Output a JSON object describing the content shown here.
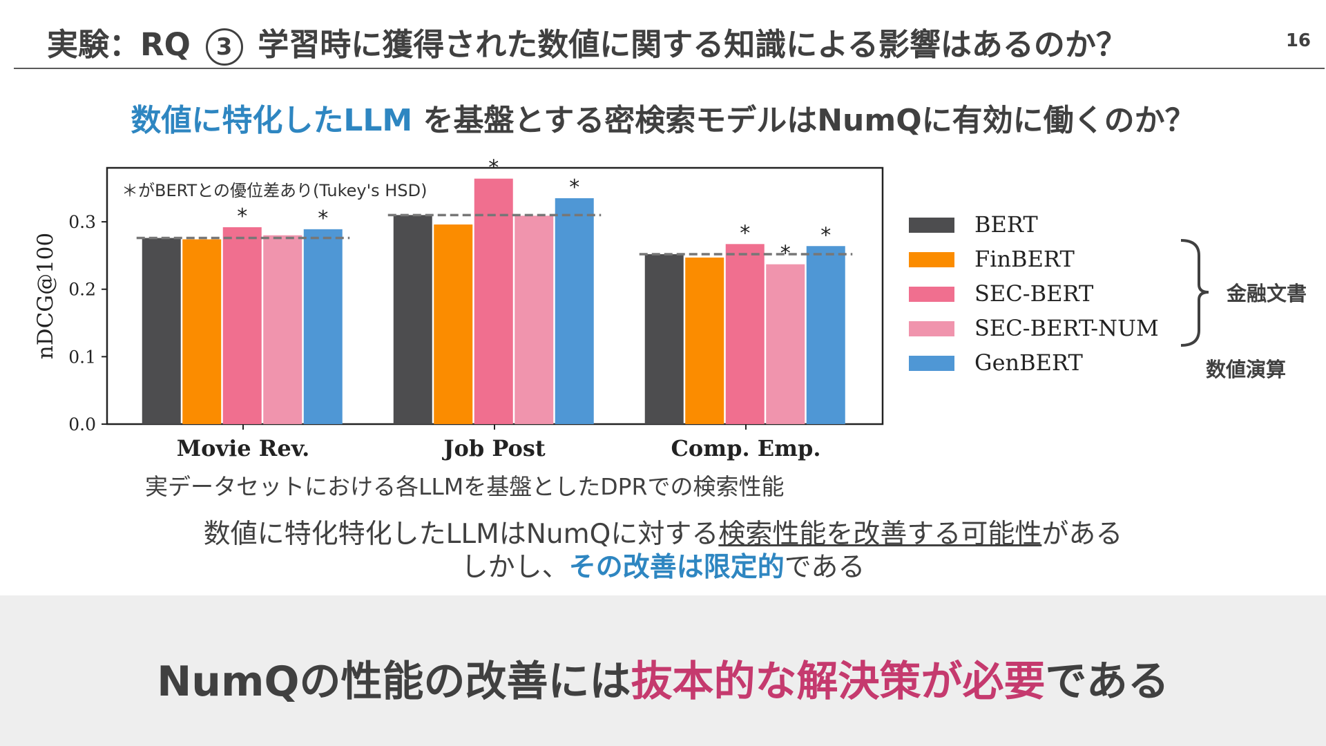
{
  "slide": {
    "title_prefix": "実験：RQ",
    "title_circle": "3",
    "title_suffix": "学習時に獲得された数値に関する知識による影響はあるのか？",
    "page_number": "16",
    "question_accent": "数値に特化したLLM",
    "question_rest": " を基盤とする密検索モデルはNumQに有効に働くのか？",
    "chart_caption": "実データセットにおける各LLMを基盤としたDPRでの検索性能",
    "finding_line1_a": "数値に特化特化したLLMはNumQに対する",
    "finding_line1_u": "検索性能を改善する可能性",
    "finding_line1_b": "がある",
    "finding_line2_a": "しかし、",
    "finding_line2_accent": "その改善は限定的",
    "finding_line2_b": "である",
    "conclusion_a": "NumQの性能の改善には",
    "conclusion_accent": "抜本的な解決策が必要",
    "conclusion_b": "である",
    "legend_group_financial": "金融文書",
    "legend_group_numeric": "数値演算",
    "colors": {
      "accent_blue": "#2e86c1",
      "accent_pink": "#c53a6e",
      "text": "#404040",
      "band": "#eeeeee"
    }
  },
  "chart_data": {
    "type": "bar",
    "ylabel": "nDCG@100",
    "ylim": [
      0,
      0.38
    ],
    "yticks": [
      "0.0",
      "0.1",
      "0.2",
      "0.3"
    ],
    "annotation": "＊がBERTとの優位差あり(Tukey's HSD)",
    "categories": [
      "Movie Rev.",
      "Job Post",
      "Comp. Emp."
    ],
    "baseline_series": "BERT",
    "series": [
      {
        "name": "BERT",
        "color": "#4d4d4f",
        "values": [
          0.276,
          0.31,
          0.252
        ],
        "significant": [
          false,
          false,
          false
        ]
      },
      {
        "name": "FinBERT",
        "color": "#fb8c00",
        "values": [
          0.274,
          0.296,
          0.247
        ],
        "significant": [
          false,
          false,
          false
        ]
      },
      {
        "name": "SEC-BERT",
        "color": "#f06f8f",
        "values": [
          0.292,
          0.364,
          0.267
        ],
        "significant": [
          true,
          true,
          true
        ]
      },
      {
        "name": "SEC-BERT-NUM",
        "color": "#f094ad",
        "values": [
          0.28,
          0.309,
          0.237
        ],
        "significant": [
          false,
          false,
          true
        ]
      },
      {
        "name": "GenBERT",
        "color": "#4f97d5",
        "values": [
          0.289,
          0.335,
          0.264
        ],
        "significant": [
          true,
          true,
          true
        ]
      }
    ],
    "grid": false,
    "legend_position": "right"
  }
}
